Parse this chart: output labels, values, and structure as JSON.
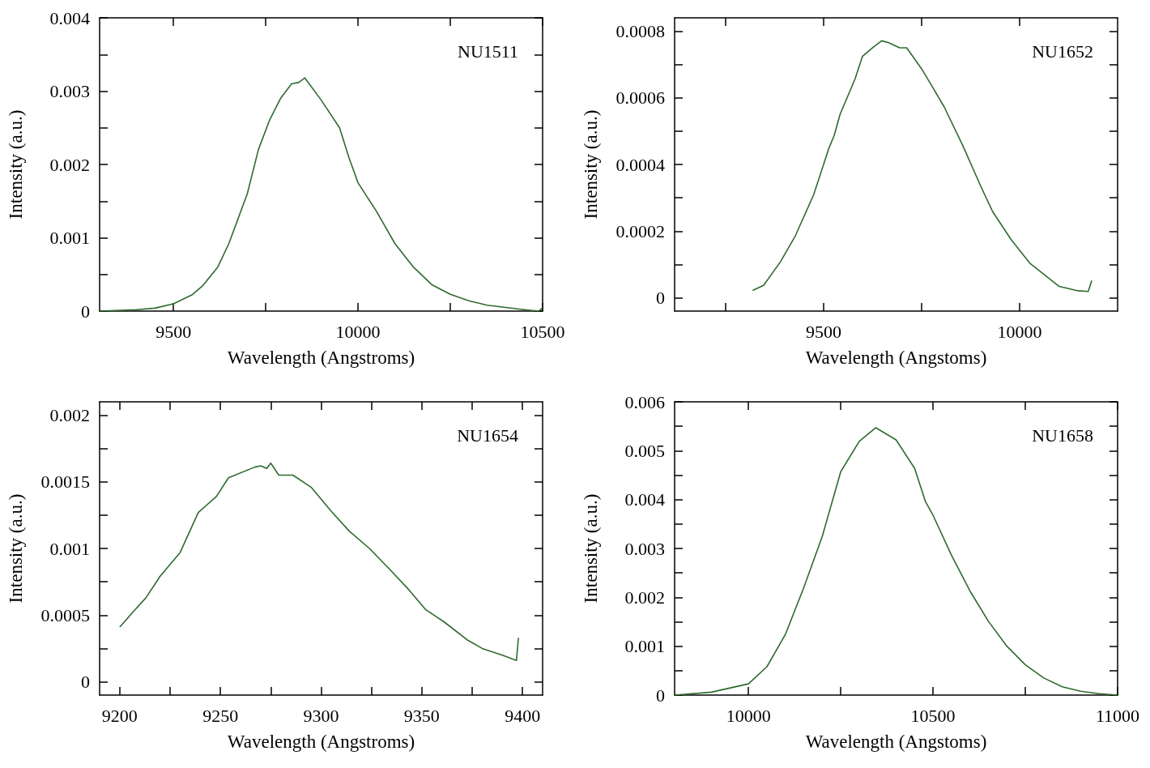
{
  "chart_data": [
    {
      "type": "line",
      "xlabel": "Wavelength (Angstroms)",
      "ylabel": "Intensity (a.u.)",
      "annotations": [
        "NU1511"
      ],
      "color": "#2e6b2e",
      "marker": "none",
      "line_style": "solid",
      "xlim": [
        9300,
        10500
      ],
      "xticks": [
        9500,
        {
          "value": 9750,
          "label": null
        },
        10000,
        {
          "value": 10250,
          "label": null
        },
        10500
      ],
      "ylim": [
        0,
        0.004
      ],
      "yticks": [
        0,
        {
          "value": 0.0005,
          "label": null
        },
        0.001,
        {
          "value": 0.0015,
          "label": null
        },
        0.002,
        {
          "value": 0.0025,
          "label": null
        },
        0.003,
        {
          "value": 0.0035,
          "label": null
        },
        0.004
      ],
      "x": [
        9300,
        9400,
        9450,
        9500,
        9550,
        9580,
        9620,
        9650,
        9700,
        9730,
        9760,
        9790,
        9820,
        9840,
        9856,
        9900,
        9950,
        9975,
        10000,
        10050,
        10100,
        10150,
        10200,
        10250,
        10300,
        10350,
        10400,
        10450,
        10490,
        10500
      ],
      "values": [
        0,
        2e-05,
        4e-05,
        0.0001,
        0.00022,
        0.00035,
        0.0006,
        0.00092,
        0.0016,
        0.0022,
        0.0026,
        0.0029,
        0.0031,
        0.00312,
        0.00318,
        0.00288,
        0.0025,
        0.0021,
        0.00175,
        0.00136,
        0.00092,
        0.0006,
        0.00036,
        0.00023,
        0.00014,
        8e-05,
        5e-05,
        2e-05,
        0,
        5e-05
      ]
    },
    {
      "type": "line",
      "xlabel": "Wavelength (Angstoms)",
      "ylabel": "Intensity (a.u.)",
      "annotations": [
        "NU1652"
      ],
      "color": "#2e6b2e",
      "marker": "none",
      "line_style": "solid",
      "xlim": [
        9120,
        10250
      ],
      "xticks": [
        {
          "value": 9250,
          "label": null
        },
        9500,
        {
          "value": 9750,
          "label": null
        },
        10000
      ],
      "ylim": [
        -4e-05,
        0.00084
      ],
      "yticks": [
        0,
        {
          "value": 0.0001,
          "label": null
        },
        0.0002,
        {
          "value": 0.0003,
          "label": null
        },
        0.0004,
        {
          "value": 0.0005,
          "label": null
        },
        0.0006,
        {
          "value": 0.0007,
          "label": null
        },
        0.0008
      ],
      "x": [
        9319,
        9347,
        9390,
        9428,
        9475,
        9513,
        9527,
        9542,
        9580,
        9599,
        9627,
        9648,
        9665,
        9694,
        9712,
        9750,
        9779,
        9808,
        9855,
        9902,
        9931,
        9978,
        10026,
        10073,
        10101,
        10149,
        10175,
        10184
      ],
      "values": [
        2.2e-05,
        3.7e-05,
        0.000108,
        0.000186,
        0.00031,
        0.000447,
        0.000487,
        0.00055,
        0.000656,
        0.000724,
        0.000752,
        0.000771,
        0.000766,
        0.00075,
        0.00075,
        0.000687,
        0.00063,
        0.000572,
        0.000457,
        0.000332,
        0.000259,
        0.000175,
        0.000104,
        6e-05,
        3.4e-05,
        2.1e-05,
        1.9e-05,
        5.2e-05
      ]
    },
    {
      "type": "line",
      "xlabel": "Wavelength (Angstroms)",
      "ylabel": "Intensity (a.u.)",
      "annotations": [
        "NU1654"
      ],
      "color": "#2e6b2e",
      "marker": "none",
      "line_style": "solid",
      "xlim": [
        9190,
        9410
      ],
      "xticks": [
        9200,
        {
          "value": 9225,
          "label": null
        },
        9250,
        {
          "value": 9275,
          "label": null
        },
        9300,
        {
          "value": 9325,
          "label": null
        },
        9350,
        {
          "value": 9375,
          "label": null
        },
        9400
      ],
      "ylim": [
        -0.0001,
        0.0021
      ],
      "yticks": [
        0,
        {
          "value": 0.00025,
          "label": null
        },
        0.0005,
        {
          "value": 0.00075,
          "label": null
        },
        0.001,
        {
          "value": 0.00125,
          "label": null
        },
        0.0015,
        {
          "value": 0.00175,
          "label": null
        },
        0.002
      ],
      "x": [
        9200,
        9207,
        9213,
        9220,
        9230,
        9239,
        9248,
        9254,
        9267,
        9270,
        9273,
        9275,
        9279,
        9286,
        9295,
        9305,
        9314,
        9324,
        9333,
        9343,
        9352,
        9361,
        9373,
        9380,
        9390,
        9397,
        9398
      ],
      "values": [
        0.00041,
        0.00053,
        0.00063,
        0.00079,
        0.00097,
        0.00127,
        0.00139,
        0.00153,
        0.00161,
        0.00162,
        0.0016,
        0.00164,
        0.00155,
        0.00155,
        0.00146,
        0.00128,
        0.00113,
        0.001,
        0.00086,
        0.0007,
        0.00054,
        0.00045,
        0.00031,
        0.00025,
        0.0002,
        0.00016,
        0.00033
      ]
    },
    {
      "type": "line",
      "xlabel": "Wavelength (Angstoms)",
      "ylabel": "Intensity (a.u.)",
      "annotations": [
        "NU1658"
      ],
      "color": "#2e6b2e",
      "marker": "none",
      "line_style": "solid",
      "xlim": [
        9800,
        11000
      ],
      "xticks": [
        10000,
        {
          "value": 10250,
          "label": null
        },
        10500,
        {
          "value": 10750,
          "label": null
        },
        11000
      ],
      "ylim": [
        0,
        0.006
      ],
      "yticks": [
        0,
        {
          "value": 0.0005,
          "label": null
        },
        0.001,
        {
          "value": 0.0015,
          "label": null
        },
        0.002,
        {
          "value": 0.0025,
          "label": null
        },
        0.003,
        {
          "value": 0.0035,
          "label": null
        },
        0.004,
        {
          "value": 0.0045,
          "label": null
        },
        0.005,
        {
          "value": 0.0055,
          "label": null
        },
        0.006
      ],
      "x": [
        9800,
        9900,
        10000,
        10050,
        10100,
        10150,
        10200,
        10250,
        10300,
        10345,
        10400,
        10450,
        10480,
        10500,
        10550,
        10600,
        10650,
        10700,
        10750,
        10800,
        10850,
        10900,
        10950,
        11000
      ],
      "values": [
        0,
        6e-05,
        0.00023,
        0.00058,
        0.00124,
        0.0022,
        0.00325,
        0.00457,
        0.00519,
        0.00547,
        0.00522,
        0.00464,
        0.00395,
        0.00368,
        0.00286,
        0.00213,
        0.00151,
        0.001,
        0.00062,
        0.00035,
        0.00017,
        8e-05,
        3e-05,
        0
      ]
    }
  ]
}
